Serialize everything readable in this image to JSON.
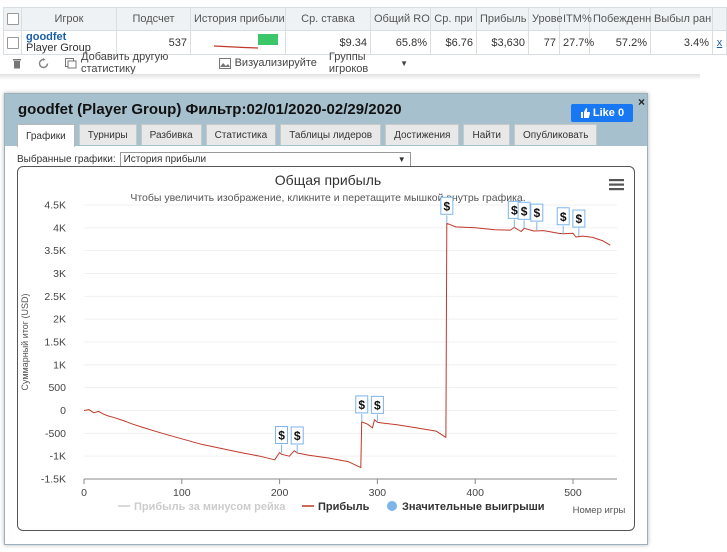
{
  "stats_table": {
    "headers": [
      "",
      "Игрок",
      "Подсчет",
      "История прибыли",
      "Ср. ставка",
      "Общий RO",
      "Ср. при",
      "Прибыль",
      "Урове",
      "ITM%",
      "Побежденн",
      "Выбыл ран",
      ""
    ],
    "row": {
      "player_name": "goodfet",
      "player_group": "Player Group",
      "count": "537",
      "avg_stake": "$9.34",
      "total_roi": "65.8%",
      "avg_profit": "$6.76",
      "profit": "$3,630",
      "level": "77",
      "itm": "27.7%",
      "won": "57.2%",
      "early_out": "3.4%",
      "remove": "x"
    }
  },
  "toolbar": {
    "add_stat": "Добавить другую статистику",
    "visualize": "Визуализируйте",
    "groups": "Группы игроков"
  },
  "dialog": {
    "title": "goodfet (Player Group) Фильтр:02/01/2020-02/29/2020",
    "like": "Like 0",
    "close": "×",
    "tabs": [
      "Графики",
      "Турниры",
      "Разбивка",
      "Статистика",
      "Таблицы лидеров",
      "Достижения",
      "Найти",
      "Опубликовать"
    ],
    "selector_label": "Выбранные графики:",
    "selector_value": "История прибыли"
  },
  "colors": {
    "profit_line": "#c0392b",
    "rake_line": "#cccccc",
    "marker": "#7cb5ec",
    "header_bg": "#a7c0cd",
    "accent": "#1877f2"
  },
  "chart_data": {
    "type": "line",
    "title": "Общая прибыль",
    "subtitle": "Чтобы увеличить изображение, кликните и перетащите мышкой внутрь графика.",
    "xlabel": "Номер игры",
    "ylabel": "Суммарный итог (USD)",
    "xlim": [
      0,
      545
    ],
    "ylim": [
      -1500,
      4500
    ],
    "xticks": [
      0,
      100,
      200,
      300,
      400,
      500
    ],
    "yticks": [
      -1500,
      -1000,
      -500,
      0,
      500,
      1000,
      1500,
      2000,
      2500,
      3000,
      3500,
      4000,
      4500
    ],
    "ytick_labels": [
      "-1.5K",
      "-1K",
      "-500",
      "0",
      "500",
      "1K",
      "1.5K",
      "2K",
      "2.5K",
      "3K",
      "3.5K",
      "4K",
      "4.5K"
    ],
    "legend": [
      "Прибыль за минусом рейка",
      "Прибыль",
      "Значительные выигрыши"
    ],
    "series": [
      {
        "name": "Прибыль",
        "x": [
          0,
          5,
          10,
          15,
          20,
          25,
          30,
          40,
          50,
          60,
          80,
          100,
          120,
          140,
          160,
          180,
          195,
          200,
          202,
          210,
          215,
          218,
          230,
          250,
          270,
          283,
          284,
          290,
          295,
          297,
          300,
          320,
          340,
          360,
          370,
          371,
          380,
          400,
          420,
          436,
          440,
          447,
          450,
          460,
          470,
          485,
          490,
          500,
          503,
          510,
          520,
          530,
          538
        ],
        "y": [
          0,
          20,
          -50,
          -20,
          -80,
          -120,
          -150,
          -220,
          -300,
          -370,
          -500,
          -620,
          -740,
          -830,
          -920,
          -1000,
          -1080,
          -920,
          -960,
          -1000,
          -880,
          -930,
          -980,
          -1040,
          -1120,
          -1250,
          -250,
          -300,
          -380,
          -200,
          -260,
          -310,
          -380,
          -450,
          -590,
          4100,
          4020,
          4000,
          3960,
          3950,
          4010,
          3920,
          3990,
          3930,
          3940,
          3880,
          3870,
          3880,
          3800,
          3820,
          3790,
          3720,
          3620
        ]
      }
    ],
    "big_wins": [
      {
        "x": 202,
        "y": -920
      },
      {
        "x": 218,
        "y": -930
      },
      {
        "x": 284,
        "y": -250
      },
      {
        "x": 300,
        "y": -260
      },
      {
        "x": 371,
        "y": 4100
      },
      {
        "x": 440,
        "y": 4010
      },
      {
        "x": 450,
        "y": 3990
      },
      {
        "x": 463,
        "y": 3950
      },
      {
        "x": 490,
        "y": 3870
      },
      {
        "x": 506,
        "y": 3820
      }
    ],
    "big_win_symbol": "$"
  }
}
